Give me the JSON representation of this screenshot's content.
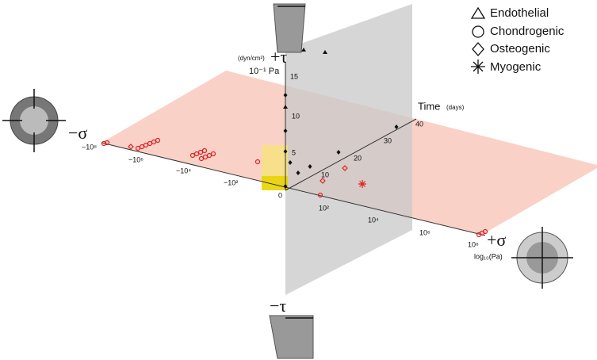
{
  "legend": {
    "items": [
      "Endothelial",
      "Chondrogenic",
      "Osteogenic",
      "Myogenic"
    ]
  },
  "axes": {
    "tau": {
      "label_pos": "+τ",
      "label_neg": "−τ",
      "unit": "(dyn/cm²)",
      "unit2": "10⁻¹ Pa",
      "ticks": [
        "15",
        "10",
        "5"
      ]
    },
    "sigma": {
      "label_neg": "−σ",
      "label_pos": "+σ",
      "unit": "log₁₀(Pa)",
      "ticks": [
        "−10⁸",
        "−10⁶",
        "−10⁴",
        "−10²",
        "10²",
        "10⁴",
        "10⁶",
        "10⁸"
      ]
    },
    "time": {
      "label": "Time",
      "unit": "(days)",
      "ticks": [
        "10",
        "20",
        "30",
        "40"
      ]
    },
    "origin": "0"
  }
}
